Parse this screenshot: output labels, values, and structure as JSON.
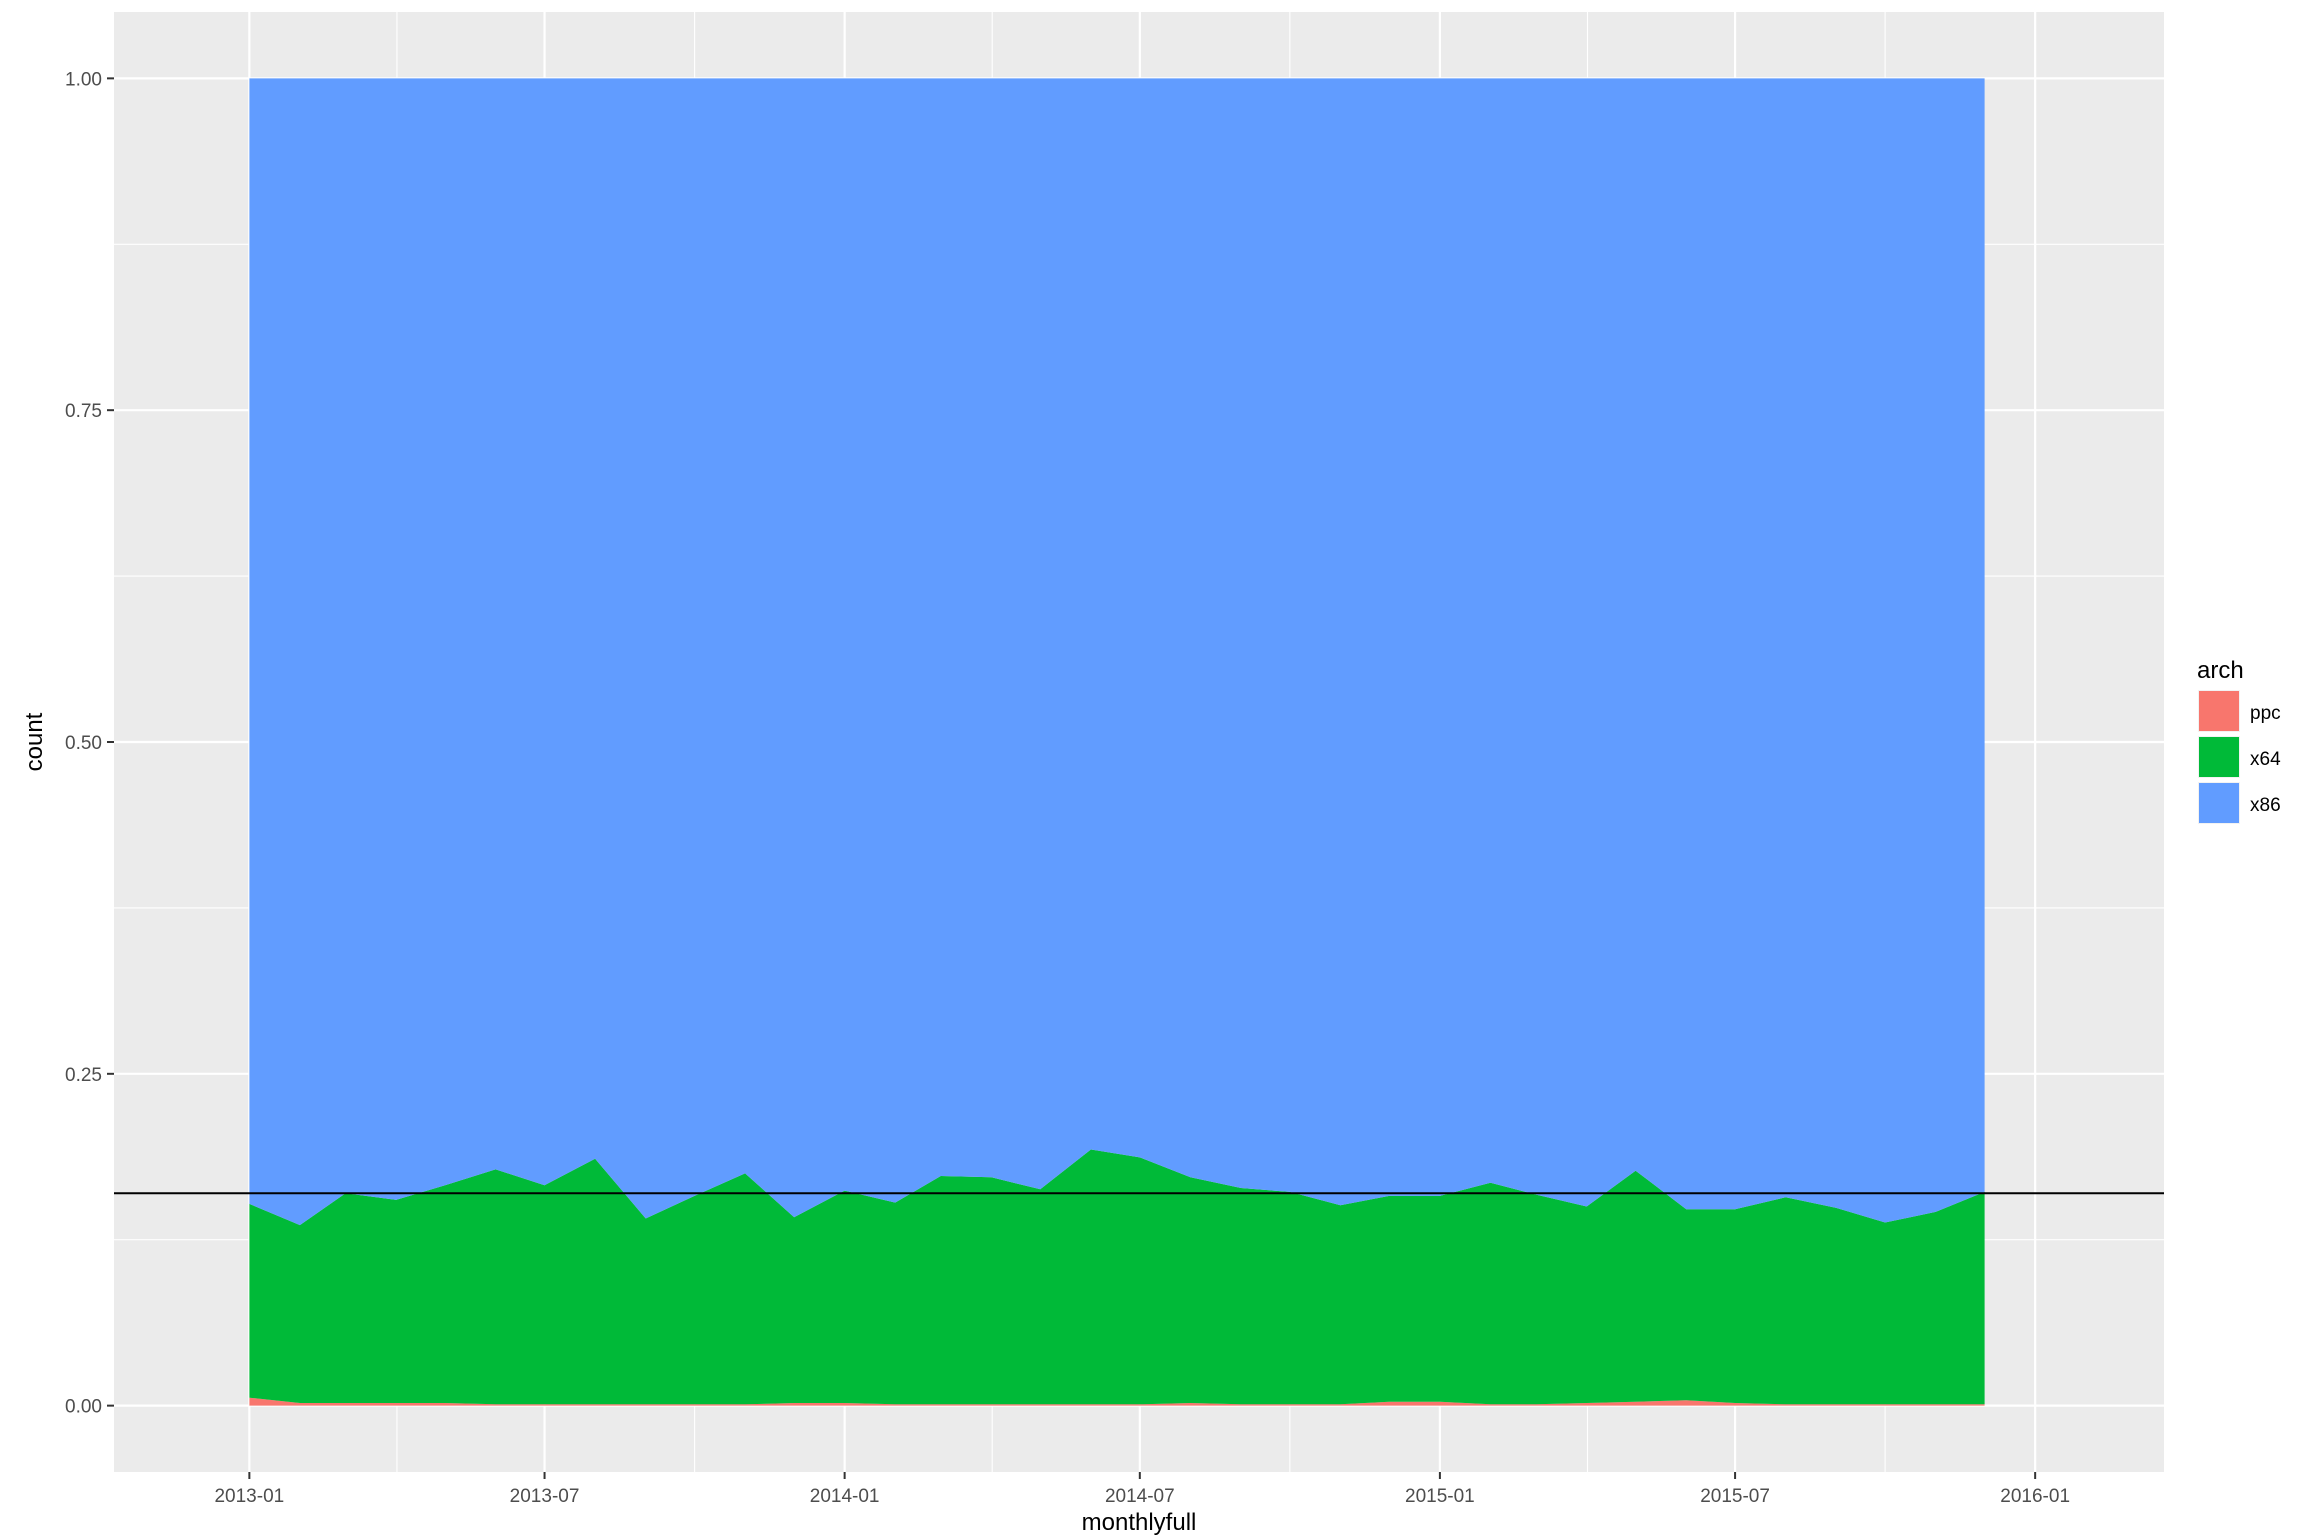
{
  "chart_data": {
    "type": "area",
    "stacked": true,
    "xlabel": "monthlyfull",
    "ylabel": "count",
    "x_axis_type": "date",
    "x_ticks": [
      "2013-01",
      "2013-07",
      "2014-01",
      "2014-07",
      "2015-01",
      "2015-07",
      "2016-01"
    ],
    "y_ticks": [
      0.0,
      0.25,
      0.5,
      0.75,
      1.0
    ],
    "xlim": [
      "2012-10-10",
      "2016-03-20"
    ],
    "ylim": [
      -0.05,
      1.05
    ],
    "grid": true,
    "legend": {
      "title": "arch",
      "position": "right",
      "entries": [
        "ppc",
        "x64",
        "x86"
      ]
    },
    "colors": {
      "ppc": "#F8766D",
      "x64": "#00BA38",
      "x86": "#619CFF",
      "panel": "#EBEBEB",
      "grid": "#FFFFFF",
      "hline": "#000000"
    },
    "x": [
      "2013-01-01",
      "2013-02-01",
      "2013-03-01",
      "2013-04-01",
      "2013-05-01",
      "2013-06-01",
      "2013-07-01",
      "2013-08-01",
      "2013-09-01",
      "2013-10-01",
      "2013-11-01",
      "2013-12-01",
      "2014-01-01",
      "2014-02-01",
      "2014-03-01",
      "2014-04-01",
      "2014-05-01",
      "2014-06-01",
      "2014-07-01",
      "2014-08-01",
      "2014-09-01",
      "2014-10-01",
      "2014-11-01",
      "2014-12-01",
      "2015-01-01",
      "2015-02-01",
      "2015-03-01",
      "2015-04-01",
      "2015-05-01",
      "2015-06-01",
      "2015-07-01",
      "2015-08-01",
      "2015-09-01",
      "2015-10-01",
      "2015-11-01",
      "2015-12-01"
    ],
    "series": [
      {
        "name": "ppc",
        "values": [
          0.006,
          0.002,
          0.002,
          0.002,
          0.002,
          0.001,
          0.001,
          0.001,
          0.001,
          0.001,
          0.001,
          0.002,
          0.002,
          0.001,
          0.001,
          0.001,
          0.001,
          0.001,
          0.001,
          0.002,
          0.001,
          0.001,
          0.001,
          0.003,
          0.003,
          0.001,
          0.001,
          0.002,
          0.003,
          0.004,
          0.002,
          0.001,
          0.001,
          0.001,
          0.001,
          0.001
        ]
      },
      {
        "name": "x64",
        "values": [
          0.146,
          0.134,
          0.158,
          0.153,
          0.164,
          0.177,
          0.165,
          0.185,
          0.14,
          0.157,
          0.174,
          0.14,
          0.16,
          0.152,
          0.172,
          0.171,
          0.162,
          0.192,
          0.186,
          0.17,
          0.163,
          0.16,
          0.15,
          0.155,
          0.155,
          0.167,
          0.158,
          0.148,
          0.174,
          0.144,
          0.146,
          0.156,
          0.148,
          0.137,
          0.145,
          0.16
        ]
      },
      {
        "name": "x86",
        "values": [
          0.848,
          0.864,
          0.84,
          0.845,
          0.834,
          0.822,
          0.834,
          0.814,
          0.859,
          0.842,
          0.825,
          0.858,
          0.838,
          0.847,
          0.827,
          0.828,
          0.837,
          0.807,
          0.813,
          0.828,
          0.836,
          0.839,
          0.849,
          0.842,
          0.842,
          0.832,
          0.841,
          0.85,
          0.823,
          0.852,
          0.852,
          0.843,
          0.851,
          0.862,
          0.854,
          0.839
        ]
      }
    ],
    "reference_line": {
      "type": "hline",
      "y": 0.16
    }
  }
}
